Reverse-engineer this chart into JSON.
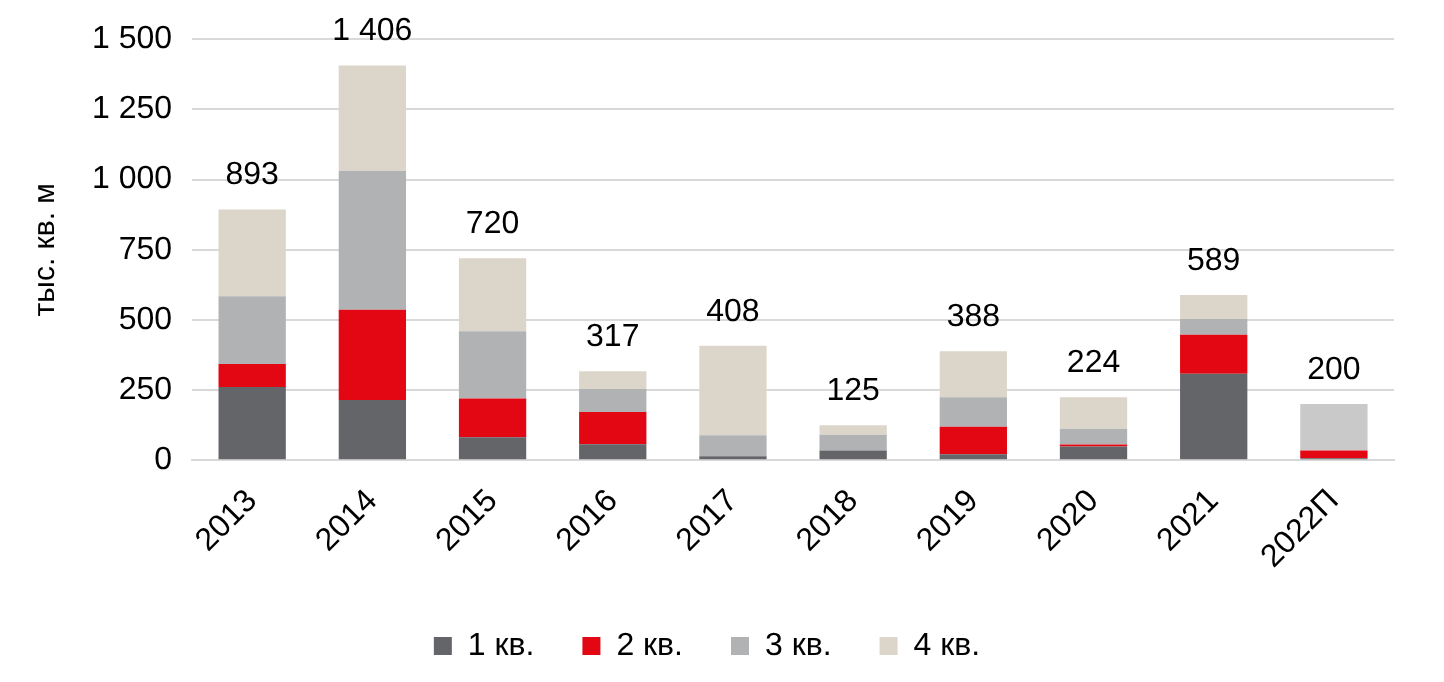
{
  "chart_data": {
    "type": "bar",
    "stacked": true,
    "ylabel": "тыс. кв. м",
    "categories": [
      "2013",
      "2014",
      "2015",
      "2016",
      "2017",
      "2018",
      "2019",
      "2020",
      "2021",
      "2022П"
    ],
    "series": [
      {
        "name": "1 кв.",
        "color": "#636569",
        "values": [
          261,
          215,
          82,
          57,
          14,
          35,
          21,
          49,
          308,
          7
        ]
      },
      {
        "name": "2 кв.",
        "color": "#e30613",
        "values": [
          82,
          321,
          138,
          115,
          0,
          0,
          98,
          7,
          139,
          28
        ]
      },
      {
        "name": "3 кв.",
        "color": "#b1b2b4",
        "values": [
          241,
          495,
          240,
          82,
          75,
          56,
          105,
          56,
          56,
          null
        ]
      },
      {
        "name": "4 кв.",
        "color": "#dcd6ca",
        "values": [
          309,
          375,
          260,
          63,
          319,
          34,
          164,
          112,
          86,
          null
        ]
      },
      {
        "color": "#c9c9c9",
        "values": [
          null,
          null,
          null,
          null,
          null,
          null,
          null,
          null,
          null,
          165
        ]
      }
    ],
    "totals": [
      "893",
      "1 406",
      "720",
      "317",
      "408",
      "125",
      "388",
      "224",
      "589",
      "200"
    ],
    "ylim": [
      0,
      1500
    ],
    "yticks": [
      0,
      250,
      500,
      750,
      {
        "value": 1000,
        "label": "1 000"
      },
      {
        "value": 1250,
        "label": "1 250"
      },
      {
        "value": 1500,
        "label": "1 500"
      }
    ],
    "grid": "y",
    "legend": "bottom"
  }
}
